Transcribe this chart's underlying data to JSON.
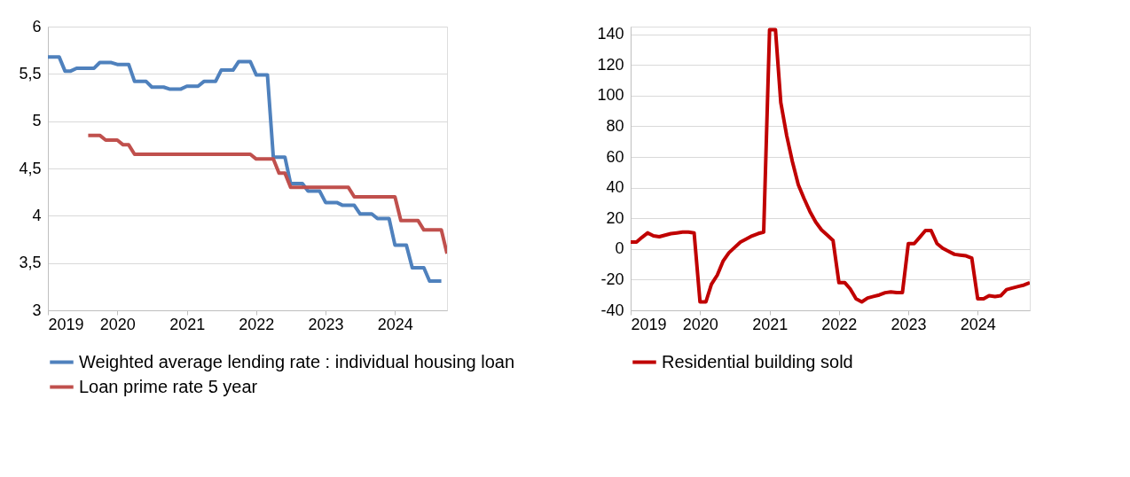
{
  "chart_data": [
    {
      "type": "line",
      "xlim": [
        "2019-01",
        "2024-10"
      ],
      "xticks": [
        "2019",
        "2020",
        "2021",
        "2022",
        "2023",
        "2024"
      ],
      "ylim": [
        3,
        6
      ],
      "yticks": [
        3,
        {
          "value": 3.5,
          "label": "3,5"
        },
        4,
        {
          "value": 4.5,
          "label": "4,5"
        },
        5,
        {
          "value": 5.5,
          "label": "5,5"
        },
        6
      ],
      "grid": "y",
      "legend": "bottom",
      "series": [
        {
          "name": "Weighted average lending rate : individual housing loan",
          "color": "#4f81bd",
          "x": [
            "2019-01",
            "2019-02",
            "2019-03",
            "2019-04",
            "2019-05",
            "2019-06",
            "2019-07",
            "2019-08",
            "2019-09",
            "2019-10",
            "2019-11",
            "2019-12",
            "2020-01",
            "2020-02",
            "2020-03",
            "2020-04",
            "2020-05",
            "2020-06",
            "2020-07",
            "2020-08",
            "2020-09",
            "2020-10",
            "2020-11",
            "2020-12",
            "2021-01",
            "2021-02",
            "2021-03",
            "2021-04",
            "2021-05",
            "2021-06",
            "2021-07",
            "2021-08",
            "2021-09",
            "2021-10",
            "2021-11",
            "2021-12",
            "2022-01",
            "2022-02",
            "2022-03",
            "2022-04",
            "2022-05",
            "2022-06",
            "2022-07",
            "2022-08",
            "2022-09",
            "2022-10",
            "2022-11",
            "2022-12",
            "2023-01",
            "2023-02",
            "2023-03",
            "2023-04",
            "2023-05",
            "2023-06",
            "2023-07",
            "2023-08",
            "2023-09",
            "2023-10",
            "2023-11",
            "2023-12",
            "2024-01",
            "2024-02",
            "2024-03",
            "2024-04",
            "2024-05",
            "2024-06",
            "2024-07",
            "2024-08",
            "2024-09"
          ],
          "values": [
            5.68,
            5.68,
            5.68,
            5.53,
            5.53,
            5.56,
            5.56,
            5.56,
            5.56,
            5.62,
            5.62,
            5.62,
            5.6,
            5.6,
            5.6,
            5.42,
            5.42,
            5.42,
            5.36,
            5.36,
            5.36,
            5.34,
            5.34,
            5.34,
            5.37,
            5.37,
            5.37,
            5.42,
            5.42,
            5.42,
            5.54,
            5.54,
            5.54,
            5.63,
            5.63,
            5.63,
            5.49,
            5.49,
            5.49,
            4.62,
            4.62,
            4.62,
            4.34,
            4.34,
            4.34,
            4.26,
            4.26,
            4.26,
            4.14,
            4.14,
            4.14,
            4.11,
            4.11,
            4.11,
            4.02,
            4.02,
            4.02,
            3.97,
            3.97,
            3.97,
            3.69,
            3.69,
            3.69,
            3.45,
            3.45,
            3.45,
            3.31,
            3.31,
            3.31
          ]
        },
        {
          "name": "Loan prime rate 5 year",
          "color": "#c0504d",
          "x": [
            "2019-08",
            "2019-09",
            "2019-10",
            "2019-11",
            "2019-12",
            "2020-01",
            "2020-02",
            "2020-03",
            "2020-04",
            "2020-05",
            "2020-06",
            "2020-07",
            "2020-08",
            "2020-09",
            "2020-10",
            "2020-11",
            "2020-12",
            "2021-01",
            "2021-02",
            "2021-03",
            "2021-04",
            "2021-05",
            "2021-06",
            "2021-07",
            "2021-08",
            "2021-09",
            "2021-10",
            "2021-11",
            "2021-12",
            "2022-01",
            "2022-02",
            "2022-03",
            "2022-04",
            "2022-05",
            "2022-06",
            "2022-07",
            "2022-08",
            "2022-09",
            "2022-10",
            "2022-11",
            "2022-12",
            "2023-01",
            "2023-02",
            "2023-03",
            "2023-04",
            "2023-05",
            "2023-06",
            "2023-07",
            "2023-08",
            "2023-09",
            "2023-10",
            "2023-11",
            "2023-12",
            "2024-01",
            "2024-02",
            "2024-03",
            "2024-04",
            "2024-05",
            "2024-06",
            "2024-07",
            "2024-08",
            "2024-09",
            "2024-10"
          ],
          "values": [
            4.85,
            4.85,
            4.85,
            4.8,
            4.8,
            4.8,
            4.75,
            4.75,
            4.65,
            4.65,
            4.65,
            4.65,
            4.65,
            4.65,
            4.65,
            4.65,
            4.65,
            4.65,
            4.65,
            4.65,
            4.65,
            4.65,
            4.65,
            4.65,
            4.65,
            4.65,
            4.65,
            4.65,
            4.65,
            4.6,
            4.6,
            4.6,
            4.6,
            4.45,
            4.45,
            4.3,
            4.3,
            4.3,
            4.3,
            4.3,
            4.3,
            4.3,
            4.3,
            4.3,
            4.3,
            4.3,
            4.2,
            4.2,
            4.2,
            4.2,
            4.2,
            4.2,
            4.2,
            4.2,
            3.95,
            3.95,
            3.95,
            3.95,
            3.85,
            3.85,
            3.85,
            3.85,
            3.6
          ]
        }
      ]
    },
    {
      "type": "line",
      "xlim": [
        "2019-01",
        "2024-10"
      ],
      "xticks": [
        "2019",
        "2020",
        "2021",
        "2022",
        "2023",
        "2024"
      ],
      "ylim": [
        -40,
        145
      ],
      "yticks": [
        -40,
        -20,
        0,
        20,
        40,
        60,
        80,
        100,
        120,
        140
      ],
      "grid": "y",
      "legend": "bottom",
      "series": [
        {
          "name": "Residential building sold",
          "color": "#c00000",
          "x": [
            "2019-01",
            "2019-02",
            "2019-03",
            "2019-04",
            "2019-05",
            "2019-06",
            "2019-07",
            "2019-08",
            "2019-09",
            "2019-10",
            "2019-11",
            "2019-12",
            "2020-01",
            "2020-02",
            "2020-03",
            "2020-04",
            "2020-05",
            "2020-06",
            "2020-07",
            "2020-08",
            "2020-09",
            "2020-10",
            "2020-11",
            "2020-12",
            "2021-01",
            "2021-02",
            "2021-03",
            "2021-04",
            "2021-05",
            "2021-06",
            "2021-07",
            "2021-08",
            "2021-09",
            "2021-10",
            "2021-11",
            "2021-12",
            "2022-01",
            "2022-02",
            "2022-03",
            "2022-04",
            "2022-05",
            "2022-06",
            "2022-07",
            "2022-08",
            "2022-09",
            "2022-10",
            "2022-11",
            "2022-12",
            "2023-01",
            "2023-02",
            "2023-03",
            "2023-04",
            "2023-05",
            "2023-06",
            "2023-07",
            "2023-08",
            "2023-09",
            "2023-10",
            "2023-11",
            "2023-12",
            "2024-01",
            "2024-02",
            "2024-03",
            "2024-04",
            "2024-05",
            "2024-06",
            "2024-07",
            "2024-08",
            "2024-09",
            "2024-10"
          ],
          "values": [
            4.5,
            4.5,
            7.5,
            10.5,
            8.5,
            8,
            9,
            10,
            10.5,
            11,
            11,
            10.5,
            -34.5,
            -34.5,
            -23,
            -17,
            -8,
            -2.5,
            1,
            4.5,
            6.5,
            8.5,
            10,
            11,
            143,
            143,
            95.5,
            74,
            57,
            42,
            33,
            24.5,
            17.5,
            12.5,
            9,
            5.5,
            -22,
            -22,
            -26,
            -32.5,
            -34.5,
            -32,
            -31,
            -30,
            -28.5,
            -28,
            -28.5,
            -28.5,
            3.5,
            3.5,
            7.5,
            12,
            12,
            3.5,
            0.5,
            -1.5,
            -3.5,
            -4,
            -4.5,
            -6,
            -32.5,
            -32.5,
            -30.5,
            -31,
            -30.5,
            -26.5,
            -25.5,
            -24.5,
            -23.5,
            -22
          ]
        }
      ]
    }
  ]
}
